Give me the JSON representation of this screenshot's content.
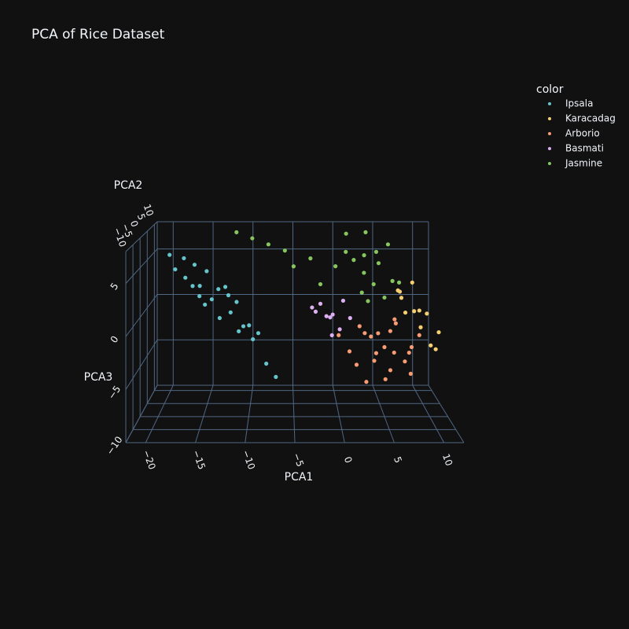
{
  "chart_data": {
    "type": "scatter3d",
    "title": "PCA of Rice Dataset",
    "xlabel": "PCA1",
    "ylabel": "PCA2",
    "zlabel": "PCA3",
    "legend_title": "color",
    "xlim": [
      -22,
      12
    ],
    "ylim": [
      -10,
      12
    ],
    "zlim": [
      -10,
      8
    ],
    "xticks": [
      {
        "value": -20,
        "label": "−20"
      },
      {
        "value": -15,
        "label": "−15"
      },
      {
        "value": -10,
        "label": "−10"
      },
      {
        "value": -5,
        "label": "−5"
      },
      0,
      5,
      10
    ],
    "yticks": [
      {
        "value": -10,
        "label": "−10"
      },
      {
        "value": -5,
        "label": "−5"
      },
      0,
      5,
      10
    ],
    "zticks": [
      {
        "value": -10,
        "label": "−10"
      },
      {
        "value": -5,
        "label": "−5"
      },
      0,
      5
    ],
    "grid": true,
    "series": [
      {
        "name": "Ipsala",
        "color": "#66c5cc",
        "x": [
          -19,
          -18,
          -17.5,
          -17,
          -16,
          -15.5,
          -15,
          -14,
          -13.5,
          -13,
          -12,
          -11.5,
          -11,
          -10,
          -9.5,
          -9,
          -8,
          -7,
          -16.5,
          -14.5,
          -12.5,
          -10.5,
          -13,
          -15
        ],
        "y": [
          2,
          -1,
          3,
          0,
          -2,
          1,
          4,
          -1,
          2,
          -3,
          0,
          3,
          -2,
          1,
          -1,
          2,
          -3,
          0,
          5,
          -4,
          4,
          -2,
          6,
          -5
        ],
        "z": [
          6,
          5,
          5.5,
          4,
          3.5,
          3,
          4,
          2,
          2.5,
          0.5,
          0.5,
          1,
          -1,
          -1,
          -2,
          -2,
          -4,
          -6,
          4.5,
          2,
          1.5,
          -0.5,
          2,
          3
        ]
      },
      {
        "name": "Karacadag",
        "color": "#f6cf71",
        "x": [
          8,
          9,
          10,
          7,
          9.5,
          8.5,
          10.5,
          7.5,
          9,
          11,
          6.5,
          8
        ],
        "y": [
          -2,
          0,
          2,
          4,
          -4,
          3,
          -1,
          6,
          1,
          0,
          -3,
          5
        ],
        "z": [
          1,
          -1,
          0,
          2,
          -2,
          3,
          -3,
          1.5,
          0.5,
          -1.5,
          2.5,
          -0.5
        ]
      },
      {
        "name": "Arborio",
        "color": "#f89c74",
        "x": [
          5,
          3,
          7,
          4,
          6,
          2,
          8,
          5,
          3.5,
          6.5,
          4.5,
          1,
          9,
          5.5,
          2.5,
          7.5,
          4,
          6,
          3,
          8,
          0,
          5
        ],
        "y": [
          0,
          2,
          -2,
          -3,
          3,
          1,
          0,
          -1,
          -4,
          2,
          4,
          -2,
          1,
          -5,
          3,
          -3,
          5,
          -1,
          0,
          2,
          1,
          -6
        ],
        "z": [
          -3,
          -2,
          -4,
          -1,
          -2,
          -5,
          -3,
          -6,
          -3.5,
          -1,
          -4.5,
          -3,
          -2,
          -2.5,
          -1.5,
          -5,
          -3,
          0,
          -6.5,
          -4,
          -2,
          -4
        ]
      },
      {
        "name": "Basmati",
        "color": "#dcb0f2",
        "x": [
          -1,
          -2,
          0,
          -1.5,
          0.5,
          -2.5,
          -0.5,
          1,
          -3,
          -1
        ],
        "y": [
          0,
          2,
          -1,
          -2,
          1,
          3,
          4,
          -3,
          0,
          -4
        ],
        "z": [
          0,
          1,
          -1,
          0.5,
          1.5,
          0,
          -0.5,
          0.5,
          1,
          -1
        ]
      },
      {
        "name": "Jasmine",
        "color": "#87c55f",
        "x": [
          3,
          2,
          4,
          5,
          1,
          6,
          3.5,
          2.5,
          4.5,
          0,
          7,
          -3,
          -6,
          -8,
          -10,
          -5,
          -2,
          3,
          5,
          1.5,
          6.5,
          -12,
          4
        ],
        "y": [
          3,
          5,
          2,
          6,
          4,
          1,
          8,
          0,
          4,
          7,
          3,
          6,
          8,
          9,
          10,
          4,
          2,
          -2,
          0,
          10,
          9,
          11,
          11
        ],
        "z": [
          4,
          5,
          3,
          4.5,
          6,
          3.5,
          5,
          2.5,
          6,
          4,
          3,
          5,
          5.5,
          6,
          6.5,
          4.5,
          3,
          2,
          2,
          7,
          6,
          7,
          7
        ]
      }
    ]
  }
}
